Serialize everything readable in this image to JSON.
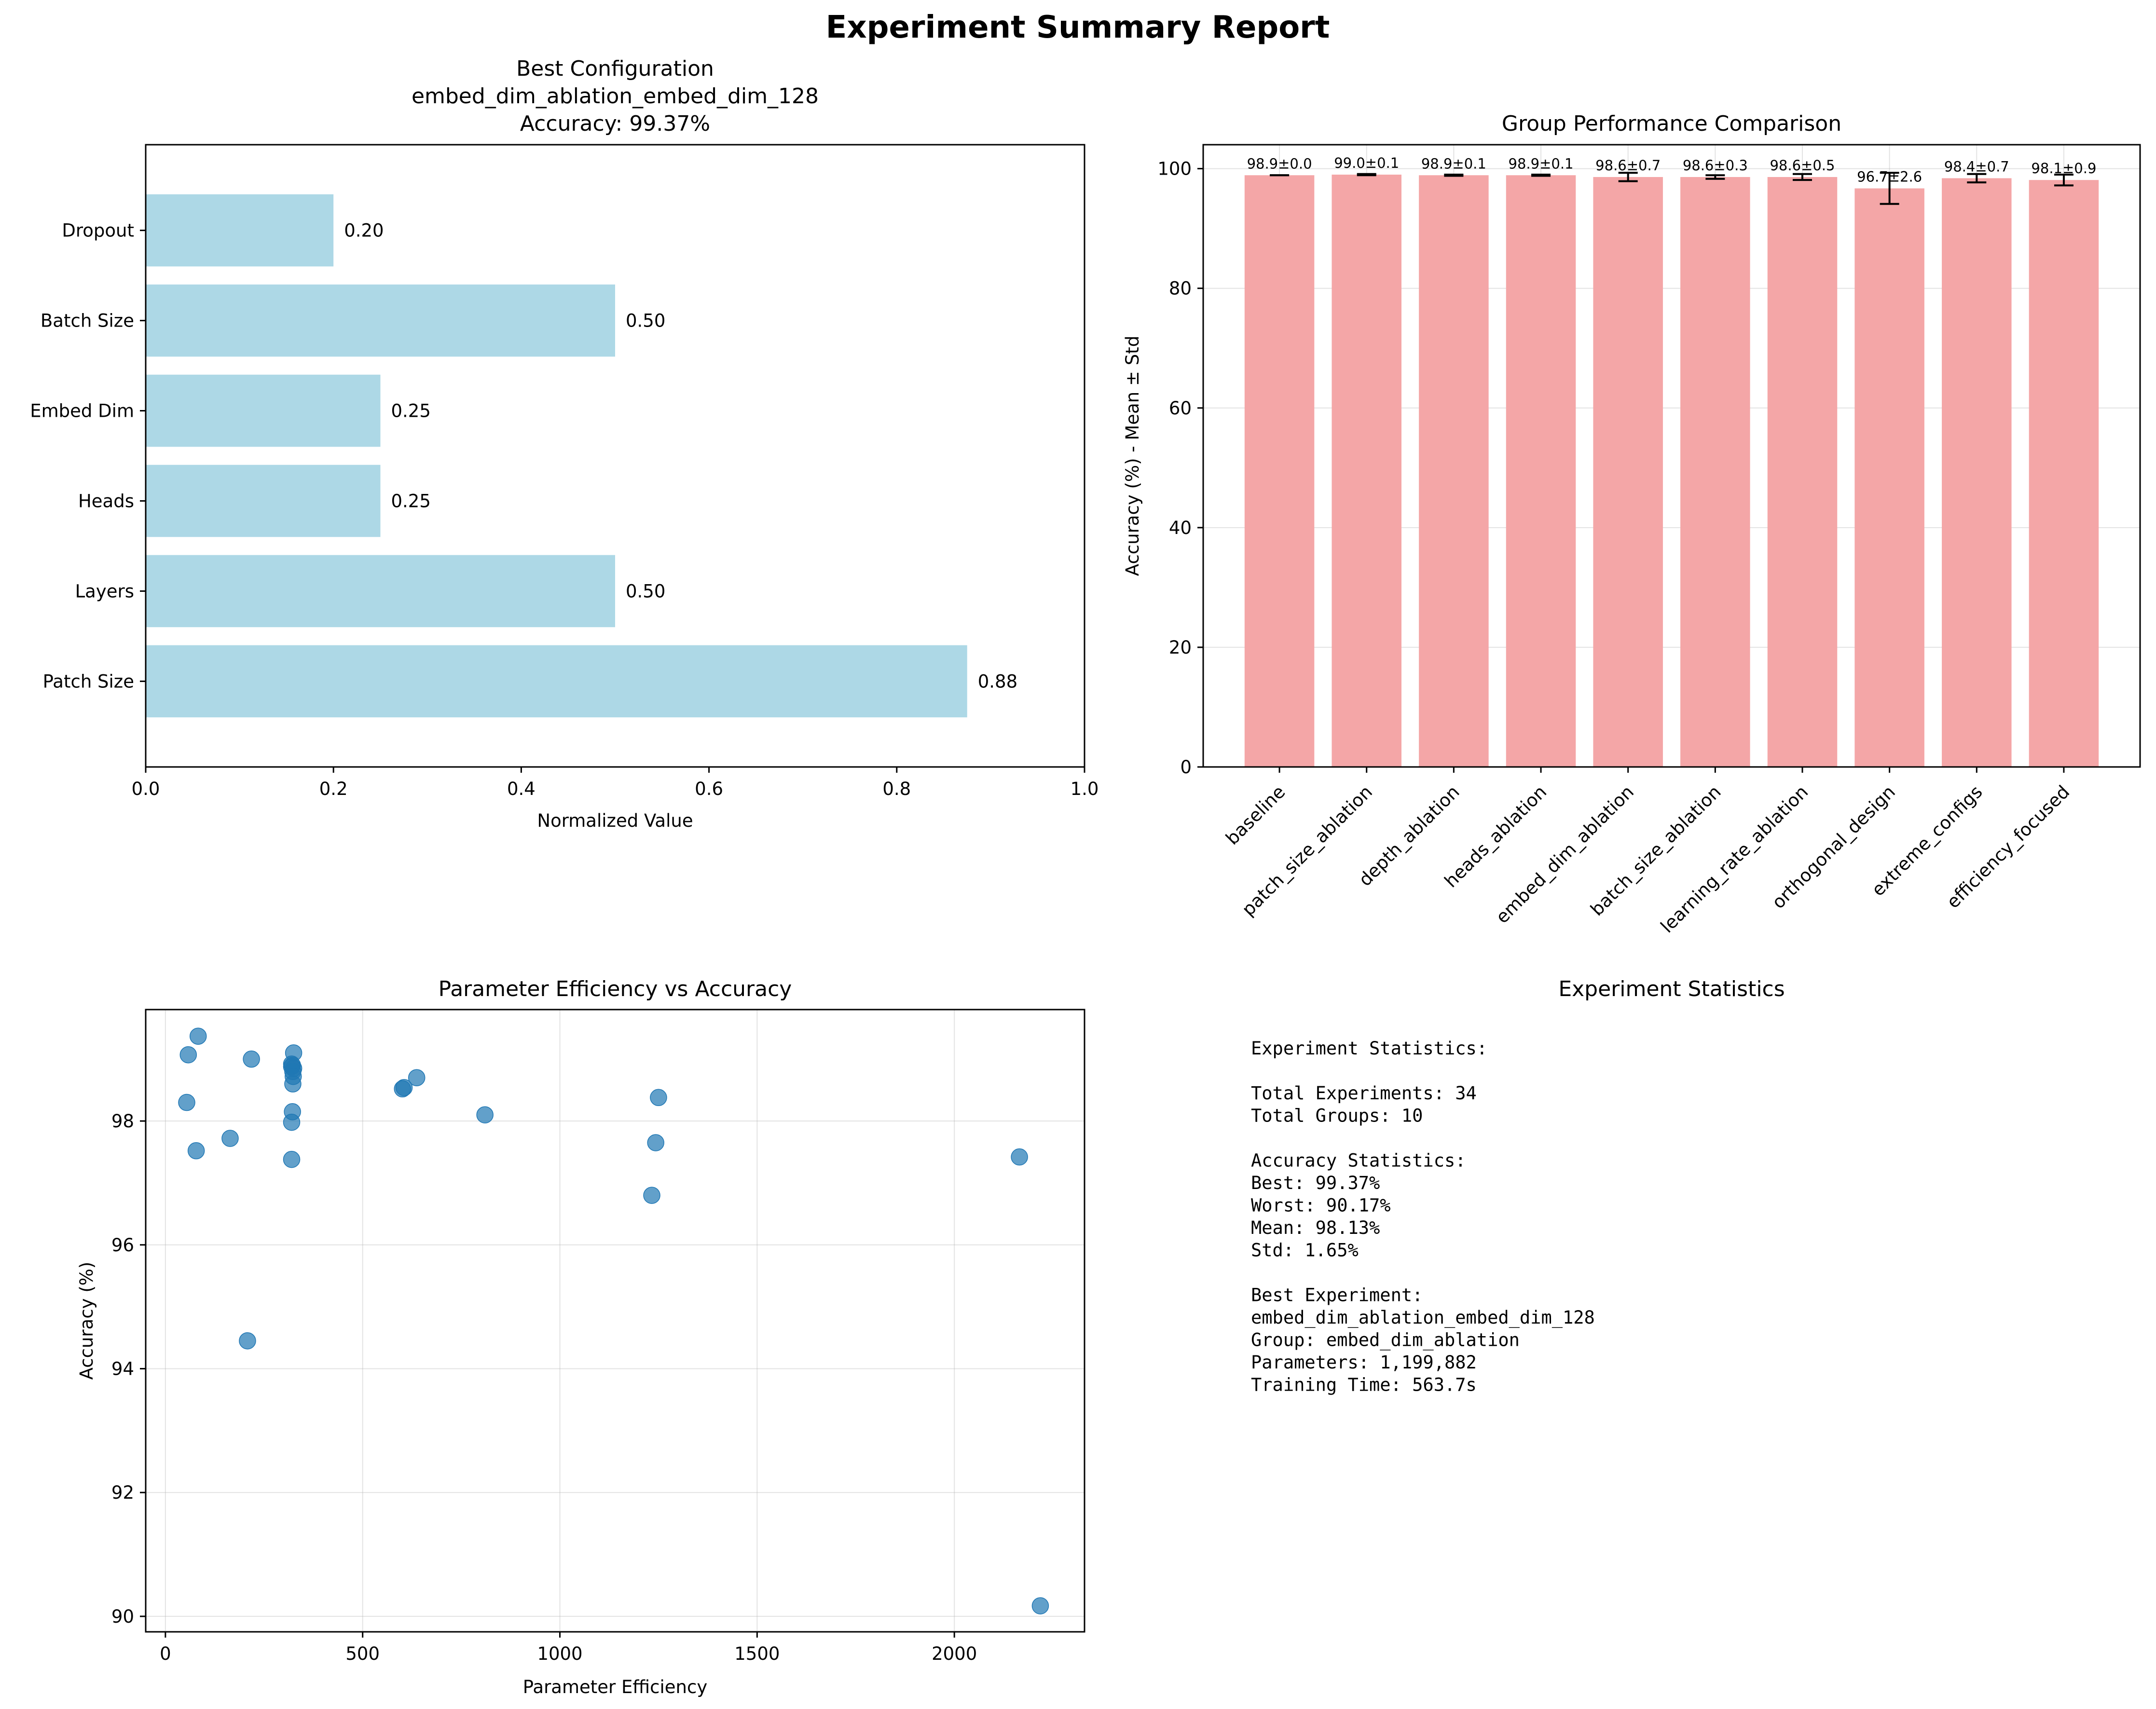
{
  "suptitle": "Experiment Summary Report",
  "colors": {
    "hbar": "#add8e6",
    "vbar": "#f4a6a7",
    "scatter": "#1f77b4",
    "error": "#000000"
  },
  "panel1": {
    "title_lines": [
      "Best Configuration",
      "embed_dim_ablation_embed_dim_128",
      "Accuracy: 99.37%"
    ],
    "xlabel": "Normalized Value",
    "chart_data": {
      "type": "bar",
      "orientation": "horizontal",
      "categories": [
        "Patch Size",
        "Layers",
        "Heads",
        "Embed Dim",
        "Batch Size",
        "Dropout"
      ],
      "values": [
        0.875,
        0.5,
        0.25,
        0.25,
        0.5,
        0.2
      ],
      "value_labels": [
        "0.88",
        "0.50",
        "0.25",
        "0.25",
        "0.50",
        "0.20"
      ],
      "xlim": [
        0,
        1.0
      ],
      "xticks": [
        0,
        0.2,
        0.4,
        0.6,
        0.8,
        1.0
      ],
      "xtick_labels": [
        "0.0",
        "0.2",
        "0.4",
        "0.6",
        "0.8",
        "1.0"
      ]
    }
  },
  "panel2": {
    "title": "Group Performance Comparison",
    "ylabel": "Accuracy (%) - Mean ± Std",
    "chart_data": {
      "type": "bar",
      "categories": [
        "baseline",
        "patch_size_ablation",
        "depth_ablation",
        "heads_ablation",
        "embed_dim_ablation",
        "batch_size_ablation",
        "learning_rate_ablation",
        "orthogonal_design",
        "extreme_configs",
        "efficiency_focused"
      ],
      "values": [
        98.9,
        99.0,
        98.9,
        98.9,
        98.6,
        98.6,
        98.6,
        96.7,
        98.4,
        98.1
      ],
      "errors": [
        0.0,
        0.1,
        0.1,
        0.1,
        0.7,
        0.3,
        0.5,
        2.6,
        0.7,
        0.9
      ],
      "value_labels": [
        "98.9±0.0",
        "99.0±0.1",
        "98.9±0.1",
        "98.9±0.1",
        "98.6±0.7",
        "98.6±0.3",
        "98.6±0.5",
        "96.7±2.6",
        "98.4±0.7",
        "98.1±0.9"
      ],
      "ylim": [
        0,
        104
      ],
      "yticks": [
        0,
        20,
        40,
        60,
        80,
        100
      ],
      "grid": true
    }
  },
  "panel3": {
    "title": "Parameter Efficiency vs Accuracy",
    "xlabel": "Parameter Efficiency",
    "ylabel": "Accuracy (%)",
    "chart_data": {
      "type": "scatter",
      "xlim": [
        -50,
        2330
      ],
      "ylim": [
        89.75,
        99.8
      ],
      "xticks": [
        0,
        500,
        1000,
        1500,
        2000
      ],
      "yticks": [
        90,
        92,
        94,
        96,
        98
      ],
      "grid": true,
      "points": [
        [
          58,
          99.07
        ],
        [
          83,
          99.37
        ],
        [
          54,
          98.3
        ],
        [
          78,
          97.52
        ],
        [
          164,
          97.72
        ],
        [
          218,
          99.0
        ],
        [
          208,
          94.45
        ],
        [
          320,
          98.92
        ],
        [
          322,
          98.9
        ],
        [
          325,
          98.85
        ],
        [
          320,
          98.88
        ],
        [
          323,
          98.8
        ],
        [
          324,
          98.72
        ],
        [
          325,
          99.1
        ],
        [
          323,
          98.6
        ],
        [
          322,
          98.15
        ],
        [
          320,
          97.98
        ],
        [
          320,
          97.38
        ],
        [
          601,
          98.52
        ],
        [
          605,
          98.54
        ],
        [
          637,
          98.7
        ],
        [
          810,
          98.1
        ],
        [
          1233,
          96.8
        ],
        [
          1243,
          97.65
        ],
        [
          1250,
          98.38
        ],
        [
          2165,
          97.42
        ],
        [
          2218,
          90.17
        ]
      ]
    }
  },
  "panel4": {
    "title": "Experiment Statistics",
    "lines": [
      "Experiment Statistics:",
      "",
      "Total Experiments: 34",
      "Total Groups: 10",
      "",
      "Accuracy Statistics:",
      "Best: 99.37%",
      "Worst: 90.17%",
      "Mean: 98.13%",
      "Std: 1.65%",
      "",
      "Best Experiment:",
      "embed_dim_ablation_embed_dim_128",
      "Group: embed_dim_ablation",
      "Parameters: 1,199,882",
      "Training Time: 563.7s"
    ]
  }
}
